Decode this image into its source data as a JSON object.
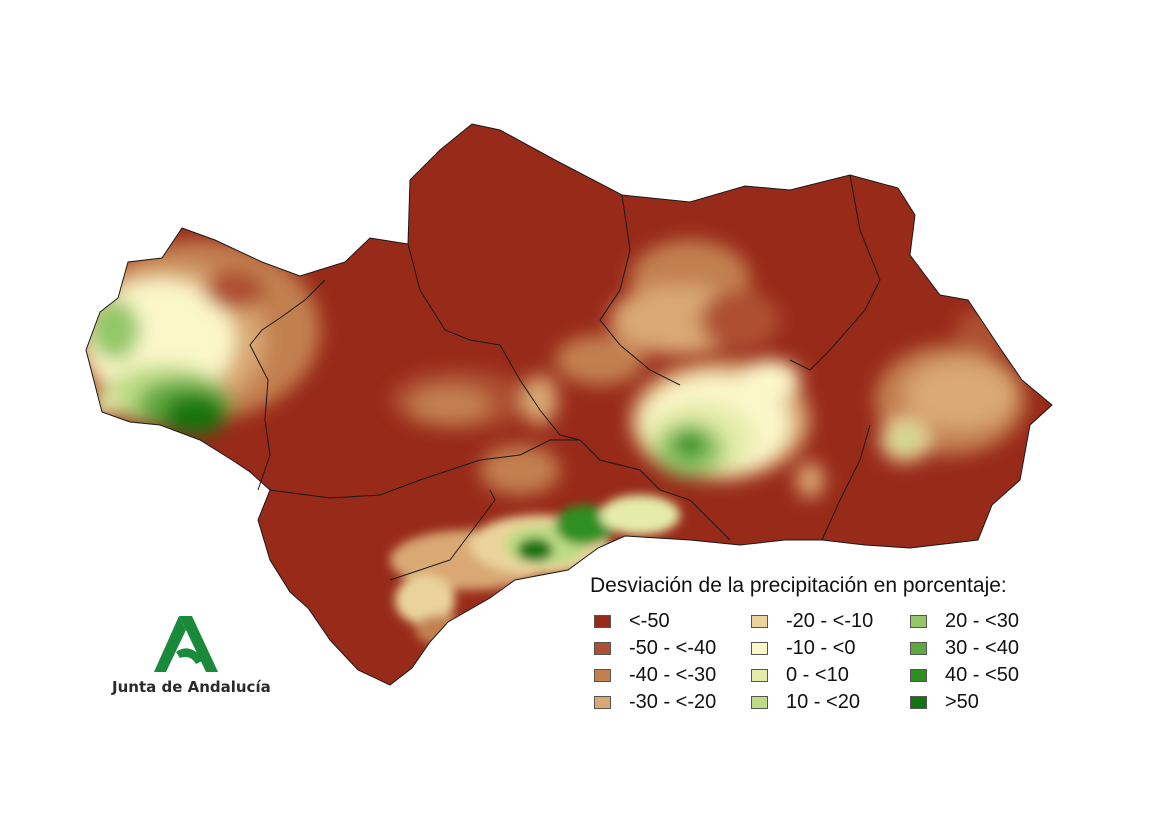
{
  "legend": {
    "title": "Desviación de la precipitación en porcentaje:",
    "classes": [
      {
        "label": "<-50",
        "color": "#982a19"
      },
      {
        "label": "-50 - <-40",
        "color": "#ae5033"
      },
      {
        "label": "-40 - <-30",
        "color": "#c3804f"
      },
      {
        "label": "-30 - <-20",
        "color": "#d9a873"
      },
      {
        "label": "-20 - <-10",
        "color": "#ead49b"
      },
      {
        "label": "-10 - <0",
        "color": "#fbf7c9"
      },
      {
        "label": "0 - <10",
        "color": "#e5eca9"
      },
      {
        "label": "10 - <20",
        "color": "#bcdb84"
      },
      {
        "label": "20 - <30",
        "color": "#93c768"
      },
      {
        "label": "30 - <40",
        "color": "#5fa83d"
      },
      {
        "label": "40 - <50",
        "color": "#2d8f22"
      },
      {
        "label": ">50",
        "color": "#127410"
      }
    ]
  },
  "logo": {
    "text": "Junta de Andalucía",
    "color": "#1a8a3a"
  }
}
